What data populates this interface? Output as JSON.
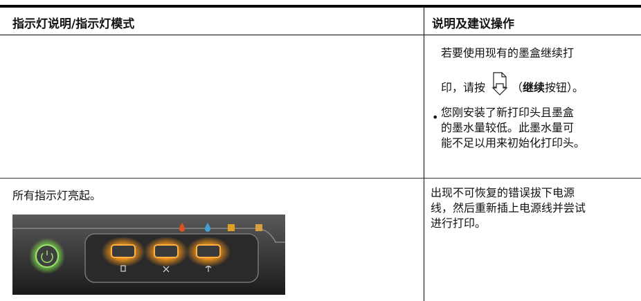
{
  "table": {
    "headers": [
      "指示灯说明/指示灯模式",
      "说明及建议操作"
    ],
    "rows": [
      {
        "left": null,
        "right": {
          "line1": "若要使用现有的墨盒继续打",
          "line2_before": "印，请按",
          "paren_open": "（",
          "bold": "继续",
          "line2_after": "按钮）。",
          "bullet": [
            "您刚安装了新打印头且墨盒",
            "的墨水量较低。此墨水量可",
            "能不足以用来初始化打印头。"
          ]
        }
      },
      {
        "left": "所有指示灯亮起。",
        "right": [
          "出现不可恢复的错误拔下电源",
          "线，然后重新插上电源线并尝试",
          "进行打印。"
        ]
      }
    ]
  }
}
